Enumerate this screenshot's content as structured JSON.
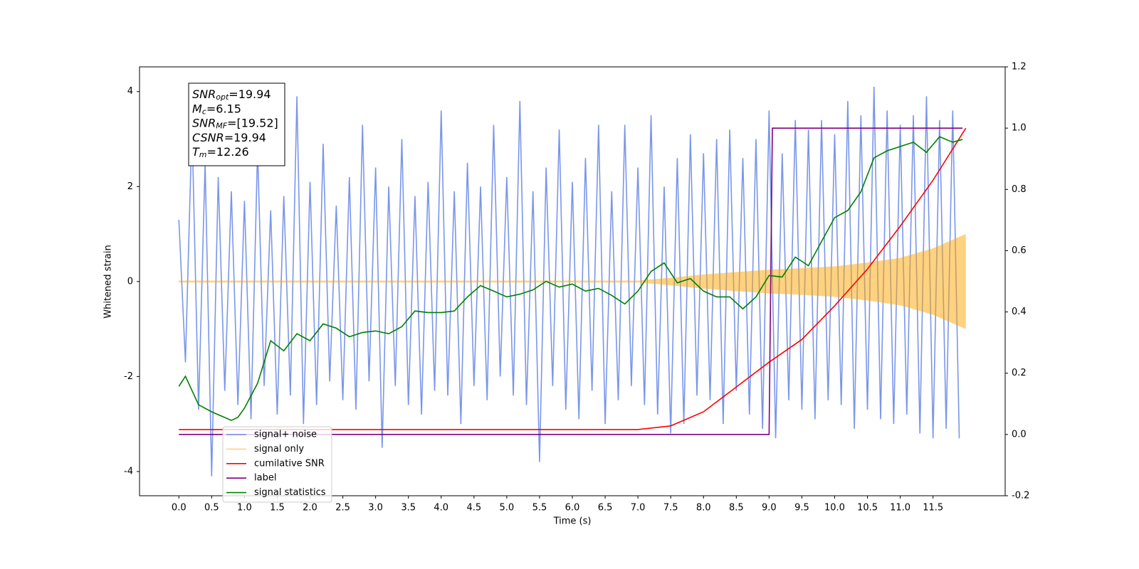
{
  "chart_data": {
    "type": "line",
    "xlabel": "Time (s)",
    "ylabel": "Whitened strain",
    "xlim": [
      -0.6,
      12.6
    ],
    "ylim": [
      -4.51,
      4.52
    ],
    "y2lim": [
      -0.2,
      1.2
    ],
    "xticks": [
      {
        "value": 0,
        "label": "0.0"
      },
      0.5,
      {
        "value": 1,
        "label": "1.0"
      },
      1.5,
      {
        "value": 2,
        "label": "2.0"
      },
      2.5,
      {
        "value": 3,
        "label": "3.0"
      },
      3.5,
      {
        "value": 4,
        "label": "4.0"
      },
      4.5,
      {
        "value": 5,
        "label": "5.0"
      },
      5.5,
      {
        "value": 6,
        "label": "6.0"
      },
      6.5,
      {
        "value": 7,
        "label": "7.0"
      },
      7.5,
      {
        "value": 8,
        "label": "8.0"
      },
      8.5,
      {
        "value": 9,
        "label": "9.0"
      },
      9.5,
      {
        "value": 10,
        "label": "10.0"
      },
      10.5,
      {
        "value": 11,
        "label": "11.0"
      },
      11.5
    ],
    "yticks": [
      -4,
      -2,
      0,
      2,
      4
    ],
    "y2ticks": [
      -0.2,
      {
        "value": 0,
        "label": "0.0"
      },
      0.2,
      0.4,
      0.6,
      0.8,
      {
        "value": 1,
        "label": "1.0"
      },
      1.2
    ],
    "legend": "lower left",
    "annotations": [
      {
        "symbol": "SNR",
        "sub": "opt",
        "text": "=19.94"
      },
      {
        "symbol": "M",
        "sub": "c",
        "text": "=6.15"
      },
      {
        "symbol": "SNR",
        "sub": "MF",
        "text": "=[19.52]"
      },
      {
        "symbol": "CSNR",
        "text": "=19.94"
      },
      {
        "symbol": "T",
        "sub": "m",
        "text": "=12.26"
      }
    ],
    "series": [
      {
        "name": "signal+ noise",
        "color": "royalblue",
        "alpha": 0.7,
        "style": "line",
        "x": [
          0,
          0.1,
          0.2,
          0.3,
          0.4,
          0.5,
          0.6,
          0.7,
          0.8,
          0.9,
          1,
          1.1,
          1.2,
          1.3,
          1.4,
          1.5,
          1.6,
          1.7,
          1.8,
          1.9,
          2,
          2.1,
          2.2,
          2.3,
          2.4,
          2.5,
          2.6,
          2.7,
          2.8,
          2.9,
          3,
          3.1,
          3.2,
          3.3,
          3.4,
          3.5,
          3.6,
          3.7,
          3.8,
          3.9,
          4,
          4.1,
          4.2,
          4.3,
          4.4,
          4.5,
          4.6,
          4.7,
          4.8,
          4.9,
          5,
          5.1,
          5.2,
          5.3,
          5.4,
          5.5,
          5.6,
          5.7,
          5.8,
          5.9,
          6,
          6.1,
          6.2,
          6.3,
          6.4,
          6.5,
          6.6,
          6.7,
          6.8,
          6.9,
          7,
          7.1,
          7.2,
          7.3,
          7.4,
          7.5,
          7.6,
          7.7,
          7.8,
          7.9,
          8,
          8.1,
          8.2,
          8.3,
          8.4,
          8.5,
          8.6,
          8.7,
          8.8,
          8.9,
          9,
          9.1,
          9.2,
          9.3,
          9.4,
          9.5,
          9.6,
          9.7,
          9.8,
          9.9,
          10,
          10.1,
          10.2,
          10.3,
          10.4,
          10.5,
          10.6,
          10.7,
          10.8,
          10.9,
          11,
          11.1,
          11.2,
          11.3,
          11.4,
          11.5,
          11.6,
          11.7,
          11.8,
          11.9
        ],
        "values": [
          1.3,
          -1.7,
          3.3,
          -2.7,
          2.5,
          -4.1,
          2.2,
          -2.3,
          1.9,
          -2.6,
          1.7,
          -2.9,
          2.8,
          -2.2,
          1.5,
          -2.8,
          1.8,
          -2.4,
          3.9,
          -3.0,
          2.1,
          -2.6,
          2.9,
          -2.1,
          1.6,
          -2.5,
          2.2,
          -2.7,
          3.3,
          -2.1,
          2.4,
          -3.5,
          2.0,
          -2.2,
          3.0,
          -2.6,
          1.8,
          -2.8,
          2.1,
          -2.3,
          3.6,
          -2.4,
          1.9,
          -3.0,
          2.5,
          -2.2,
          2.0,
          -2.5,
          3.3,
          -2.0,
          2.2,
          -2.4,
          3.8,
          -2.6,
          1.9,
          -3.8,
          2.4,
          -2.2,
          3.2,
          -2.7,
          2.1,
          -2.9,
          2.6,
          -2.3,
          3.3,
          -3.0,
          1.9,
          -2.5,
          3.3,
          -2.2,
          2.4,
          -2.6,
          3.5,
          -2.8,
          2.0,
          -3.2,
          2.6,
          -3.0,
          3.1,
          -2.4,
          2.7,
          -2.5,
          3.0,
          -3.0,
          3.2,
          -2.3,
          2.6,
          -2.8,
          3.0,
          -3.1,
          3.6,
          -3.3,
          2.7,
          -2.5,
          3.4,
          -2.7,
          3.2,
          -2.9,
          3.4,
          -2.5,
          3.1,
          -2.6,
          3.8,
          -3.1,
          3.5,
          -2.7,
          4.1,
          -2.9,
          3.6,
          -3.0,
          3.3,
          -2.8,
          3.5,
          -3.2,
          3.9,
          -3.3,
          3.4,
          -3.1,
          3.6,
          -3.3
        ]
      },
      {
        "name": "signal only",
        "color": "orange",
        "alpha": 0.5,
        "style": "band",
        "x": [
          0,
          7.0,
          7.5,
          8.0,
          8.5,
          9.0,
          9.5,
          10.0,
          10.5,
          11.0,
          11.5,
          12.0
        ],
        "values": [
          0.02,
          0.02,
          0.08,
          0.15,
          0.2,
          0.25,
          0.28,
          0.32,
          0.4,
          0.5,
          0.7,
          1.0
        ]
      },
      {
        "name": "cumilative SNR",
        "color": "red",
        "alpha": 1,
        "style": "line",
        "axis": "y2",
        "x": [
          0,
          7.0,
          7.5,
          8.0,
          8.5,
          9.0,
          9.5,
          10.0,
          10.5,
          11.0,
          11.5,
          12.0
        ],
        "values": [
          0.016,
          0.016,
          0.028,
          0.074,
          0.155,
          0.236,
          0.31,
          0.42,
          0.54,
          0.68,
          0.83,
          1.0
        ]
      },
      {
        "name": "label",
        "color": "purple",
        "alpha": 1,
        "style": "line",
        "axis": "y2",
        "x": [
          0,
          9.0,
          9.05,
          11.95
        ],
        "values": [
          0,
          0,
          1,
          1
        ]
      },
      {
        "name": "signal statistics",
        "color": "green",
        "alpha": 1,
        "style": "line",
        "axis": "y2",
        "x": [
          0,
          0.1,
          0.3,
          0.5,
          0.8,
          0.9,
          1.0,
          1.2,
          1.4,
          1.6,
          1.8,
          2.0,
          2.2,
          2.4,
          2.6,
          2.8,
          3.0,
          3.2,
          3.4,
          3.6,
          3.8,
          4.0,
          4.2,
          4.4,
          4.6,
          4.8,
          5.0,
          5.2,
          5.4,
          5.6,
          5.8,
          6.0,
          6.2,
          6.4,
          6.6,
          6.8,
          7.0,
          7.2,
          7.4,
          7.6,
          7.8,
          8.0,
          8.2,
          8.4,
          8.6,
          8.8,
          9.0,
          9.2,
          9.4,
          9.6,
          9.8,
          10.0,
          10.2,
          10.4,
          10.6,
          10.8,
          11.0,
          11.2,
          11.4,
          11.6,
          11.8,
          11.95
        ],
        "values": [
          0.157,
          0.19,
          0.097,
          0.074,
          0.046,
          0.056,
          0.086,
          0.167,
          0.306,
          0.273,
          0.329,
          0.306,
          0.361,
          0.347,
          0.319,
          0.333,
          0.338,
          0.329,
          0.352,
          0.403,
          0.398,
          0.398,
          0.403,
          0.449,
          0.486,
          0.468,
          0.449,
          0.458,
          0.472,
          0.5,
          0.481,
          0.491,
          0.468,
          0.477,
          0.454,
          0.426,
          0.468,
          0.532,
          0.56,
          0.495,
          0.509,
          0.468,
          0.449,
          0.449,
          0.41,
          0.449,
          0.519,
          0.514,
          0.579,
          0.551,
          0.63,
          0.708,
          0.731,
          0.792,
          0.903,
          0.926,
          0.94,
          0.954,
          0.921,
          0.972,
          0.954,
          0.963
        ]
      }
    ]
  }
}
